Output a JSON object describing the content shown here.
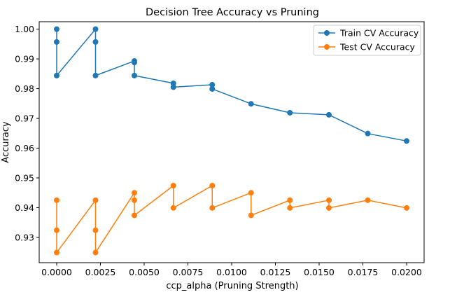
{
  "chart_data": {
    "type": "line",
    "title": "Decision Tree Accuracy vs Pruning",
    "xlabel": "ccp_alpha (Pruning Strength)",
    "ylabel": "Accuracy",
    "xlim": [
      -0.001,
      0.021
    ],
    "ylim": [
      0.9215,
      1.0025
    ],
    "xticks": [
      0.0,
      0.0025,
      0.005,
      0.0075,
      0.01,
      0.0125,
      0.015,
      0.0175,
      0.02
    ],
    "xtick_labels": [
      "0.0000",
      "0.0025",
      "0.0050",
      "0.0075",
      "0.0100",
      "0.0125",
      "0.0150",
      "0.0175",
      "0.0200"
    ],
    "yticks": [
      0.93,
      0.94,
      0.95,
      0.96,
      0.97,
      0.98,
      0.99,
      1.0
    ],
    "ytick_labels": [
      "0.93",
      "0.94",
      "0.95",
      "0.96",
      "0.97",
      "0.98",
      "0.99",
      "1.00"
    ],
    "grid": false,
    "legend_position": "top-right",
    "series": [
      {
        "name": "Train CV Accuracy",
        "color": "#1f77b4",
        "x": [
          0.0,
          0.0,
          0.0,
          0.00222,
          0.00222,
          0.00222,
          0.00444,
          0.00444,
          0.00444,
          0.00667,
          0.00667,
          0.00889,
          0.00889,
          0.01111,
          0.01333,
          0.01556,
          0.01778,
          0.02
        ],
        "y": [
          1.0,
          0.9957,
          0.9844,
          1.0,
          0.9957,
          0.9844,
          0.9893,
          0.9888,
          0.9844,
          0.9818,
          0.9805,
          0.9813,
          0.9799,
          0.9749,
          0.9719,
          0.9712,
          0.9649,
          0.9624
        ]
      },
      {
        "name": "Test CV Accuracy",
        "color": "#ff7f0e",
        "x": [
          0.0,
          0.0,
          0.0,
          0.00222,
          0.00222,
          0.00222,
          0.00444,
          0.00444,
          0.00444,
          0.00667,
          0.00667,
          0.00889,
          0.00889,
          0.01111,
          0.01111,
          0.01333,
          0.01333,
          0.01556,
          0.01556,
          0.01778,
          0.02
        ],
        "y": [
          0.9425,
          0.9324,
          0.9249,
          0.9425,
          0.9324,
          0.9249,
          0.945,
          0.9425,
          0.9374,
          0.9474,
          0.9399,
          0.9474,
          0.9399,
          0.945,
          0.9374,
          0.9425,
          0.9399,
          0.9425,
          0.9399,
          0.9425,
          0.9399
        ]
      }
    ]
  }
}
